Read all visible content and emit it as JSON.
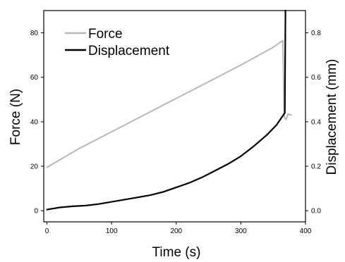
{
  "chart_data": {
    "type": "line",
    "xlabel": "Time (s)",
    "ylabel_left": "Force (N)",
    "ylabel_right": "Displacement (mm)",
    "xlim": [
      -5,
      400
    ],
    "ylim_left": [
      -5,
      90
    ],
    "ylim_right": [
      -0.05,
      0.9
    ],
    "x_ticks": [
      0,
      100,
      200,
      300,
      400
    ],
    "y_left_ticks": [
      0,
      20,
      40,
      60,
      80
    ],
    "y_right_ticks": [
      0.0,
      0.2,
      0.4,
      0.6,
      0.8
    ],
    "y_right_tick_labels": [
      "0.0",
      "0.2",
      "0.4",
      "0.6",
      "0.8"
    ],
    "legend_position": "top-left",
    "grid": false,
    "series": [
      {
        "name": "Force",
        "axis": "left",
        "color": "#b8b8b8",
        "points": [
          [
            0,
            19.5
          ],
          [
            50,
            28
          ],
          [
            100,
            35.5
          ],
          [
            150,
            43
          ],
          [
            200,
            50.5
          ],
          [
            250,
            58
          ],
          [
            300,
            65.5
          ],
          [
            350,
            73.5
          ],
          [
            365,
            76.5
          ],
          [
            367,
            42
          ],
          [
            370,
            41
          ],
          [
            373,
            43.5
          ],
          [
            378,
            43
          ]
        ]
      },
      {
        "name": "Displacement",
        "axis": "right",
        "color": "#000000",
        "points": [
          [
            0,
            0.005
          ],
          [
            20,
            0.015
          ],
          [
            40,
            0.02
          ],
          [
            60,
            0.023
          ],
          [
            80,
            0.03
          ],
          [
            100,
            0.04
          ],
          [
            120,
            0.05
          ],
          [
            140,
            0.06
          ],
          [
            160,
            0.07
          ],
          [
            180,
            0.085
          ],
          [
            200,
            0.105
          ],
          [
            220,
            0.125
          ],
          [
            240,
            0.15
          ],
          [
            260,
            0.18
          ],
          [
            280,
            0.21
          ],
          [
            300,
            0.245
          ],
          [
            320,
            0.29
          ],
          [
            340,
            0.34
          ],
          [
            355,
            0.385
          ],
          [
            362,
            0.415
          ],
          [
            368,
            0.44
          ],
          [
            369,
            0.9
          ]
        ]
      }
    ]
  }
}
